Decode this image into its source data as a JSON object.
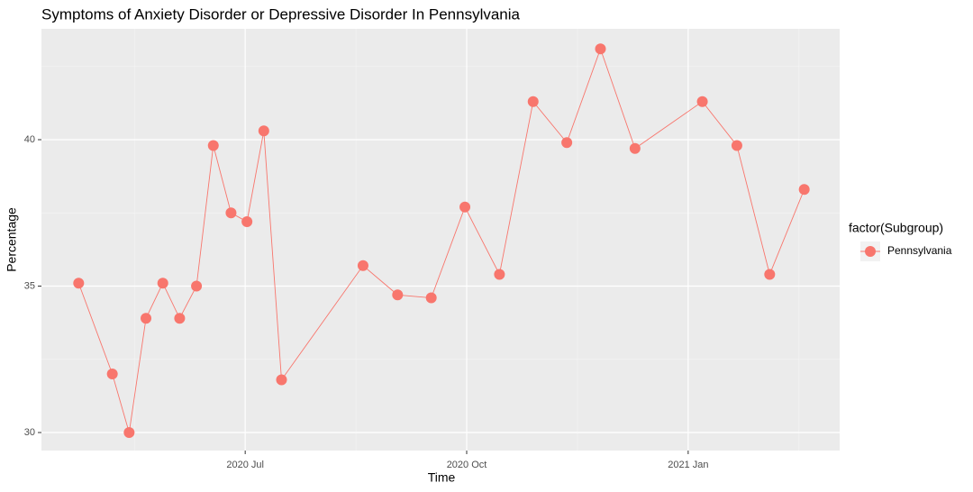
{
  "chart_data": {
    "type": "line",
    "title": "Symptoms of Anxiety Disorder or Depressive Disorder In Pennsylvania",
    "x_label": "Time",
    "y_label": "Percentage",
    "legend_title": "factor(Subgroup)",
    "legend_position": "right",
    "grid": true,
    "x": [
      2020.312,
      2020.35,
      2020.369,
      2020.388,
      2020.407,
      2020.426,
      2020.445,
      2020.464,
      2020.484,
      2020.502,
      2020.521,
      2020.541,
      2020.633,
      2020.672,
      2020.71,
      2020.748,
      2020.787,
      2020.825,
      2020.863,
      2020.901,
      2020.94,
      2021.016,
      2021.055,
      2021.092,
      2021.131
    ],
    "series": [
      {
        "name": "Pennsylvania",
        "color": "#F8766D",
        "values": [
          35.1,
          32.0,
          30.0,
          33.9,
          35.1,
          33.9,
          35.0,
          39.8,
          37.5,
          37.2,
          40.3,
          31.8,
          35.7,
          34.7,
          34.6,
          37.7,
          35.4,
          41.3,
          39.9,
          43.1,
          39.7,
          41.3,
          39.8,
          35.4,
          38.3
        ]
      }
    ],
    "xlim": [
      2020.27,
      2021.171
    ],
    "xticks": [
      {
        "value": 2020.5,
        "label": "2020 Jul"
      },
      {
        "value": 2020.75,
        "label": "2020 Oct"
      },
      {
        "value": 2021.0,
        "label": "2021 Jan"
      }
    ],
    "ylim": [
      29.385,
      43.785
    ],
    "yticks": [
      30,
      35,
      40
    ]
  }
}
